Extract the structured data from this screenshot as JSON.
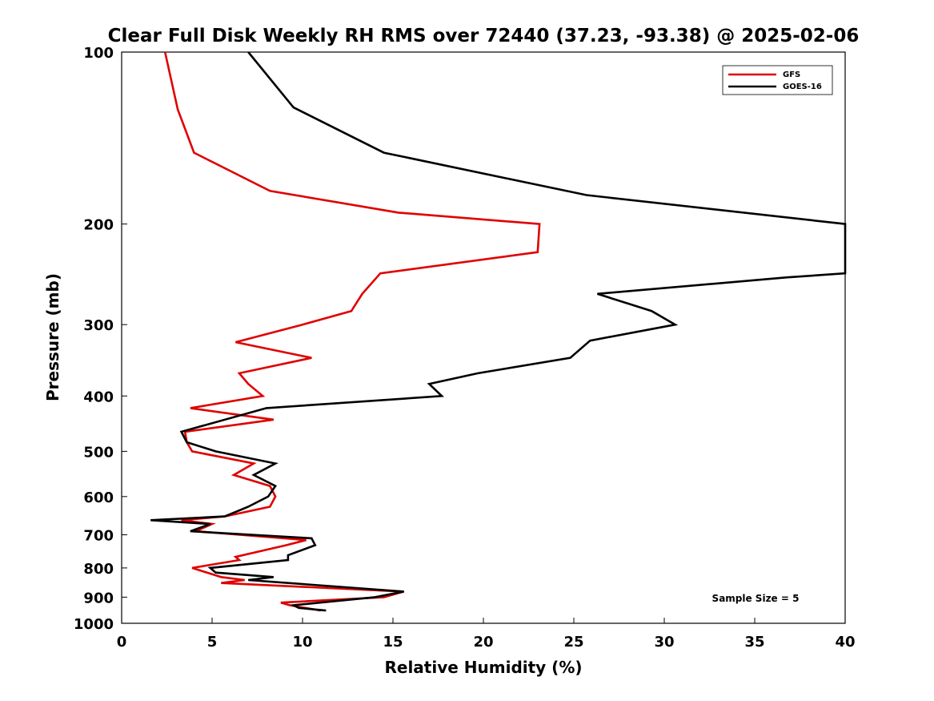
{
  "chart_data": {
    "type": "line",
    "title": "Clear Full Disk Weekly RH RMS over 72440 (37.23, -93.38) @ 2025-02-06",
    "xlabel": "Relative Humidity (%)",
    "ylabel": "Pressure (mb)",
    "xlim": [
      0,
      40
    ],
    "ylim": [
      100,
      1000
    ],
    "yscale": "log",
    "yreverse": true,
    "x_ticks": [
      "0",
      "5",
      "10",
      "15",
      "20",
      "25",
      "30",
      "35",
      "40"
    ],
    "y_ticks": [
      "100",
      "200",
      "300",
      "400",
      "500",
      "600",
      "700",
      "800",
      "900",
      "1000"
    ],
    "legend": {
      "position": "top-right"
    },
    "annotation": "Sample Size = 5",
    "series": [
      {
        "name": "GFS",
        "color": "#e00000",
        "points": [
          [
            2.4,
            100
          ],
          [
            3.1,
            126
          ],
          [
            4.0,
            150
          ],
          [
            8.2,
            175
          ],
          [
            15.3,
            191
          ],
          [
            23.1,
            200
          ],
          [
            23.0,
            224
          ],
          [
            14.3,
            244
          ],
          [
            13.3,
            265
          ],
          [
            12.7,
            284
          ],
          [
            10.0,
            300
          ],
          [
            6.3,
            322
          ],
          [
            10.5,
            343
          ],
          [
            6.5,
            365
          ],
          [
            7.0,
            381
          ],
          [
            7.8,
            400
          ],
          [
            3.8,
            420
          ],
          [
            8.4,
            440
          ],
          [
            3.5,
            462
          ],
          [
            3.6,
            482
          ],
          [
            3.9,
            500
          ],
          [
            7.3,
            525
          ],
          [
            6.2,
            550
          ],
          [
            8.2,
            575
          ],
          [
            8.5,
            600
          ],
          [
            8.2,
            625
          ],
          [
            5.7,
            650
          ],
          [
            3.3,
            660
          ],
          [
            5.0,
            670
          ],
          [
            4.1,
            690
          ],
          [
            10.2,
            715
          ],
          [
            9.1,
            730
          ],
          [
            6.3,
            765
          ],
          [
            6.5,
            775
          ],
          [
            3.9,
            800
          ],
          [
            5.5,
            830
          ],
          [
            6.8,
            840
          ],
          [
            5.5,
            850
          ],
          [
            15.6,
            880
          ],
          [
            14.5,
            900
          ],
          [
            8.8,
            920
          ],
          [
            9.3,
            930
          ],
          [
            11.0,
            950
          ]
        ]
      },
      {
        "name": "GOES-16",
        "color": "#000000",
        "points": [
          [
            7.0,
            100
          ],
          [
            9.5,
            125
          ],
          [
            14.5,
            150
          ],
          [
            25.7,
            178
          ],
          [
            40.0,
            200
          ],
          [
            40.0,
            244
          ],
          [
            36.8,
            248
          ],
          [
            26.3,
            265
          ],
          [
            29.3,
            284
          ],
          [
            30.6,
            300
          ],
          [
            25.9,
            320
          ],
          [
            24.8,
            343
          ],
          [
            19.7,
            365
          ],
          [
            17.0,
            381
          ],
          [
            17.7,
            400
          ],
          [
            8.0,
            420
          ],
          [
            3.3,
            462
          ],
          [
            3.6,
            482
          ],
          [
            5.2,
            500
          ],
          [
            8.5,
            525
          ],
          [
            7.3,
            550
          ],
          [
            8.5,
            575
          ],
          [
            8.1,
            600
          ],
          [
            7.0,
            625
          ],
          [
            5.7,
            650
          ],
          [
            1.6,
            660
          ],
          [
            4.9,
            670
          ],
          [
            3.8,
            690
          ],
          [
            10.5,
            710
          ],
          [
            10.7,
            730
          ],
          [
            9.2,
            760
          ],
          [
            9.2,
            775
          ],
          [
            4.9,
            800
          ],
          [
            5.2,
            815
          ],
          [
            8.4,
            830
          ],
          [
            7.0,
            840
          ],
          [
            15.6,
            880
          ],
          [
            14.0,
            900
          ],
          [
            9.5,
            930
          ],
          [
            9.8,
            940
          ],
          [
            11.3,
            950
          ]
        ]
      }
    ]
  }
}
